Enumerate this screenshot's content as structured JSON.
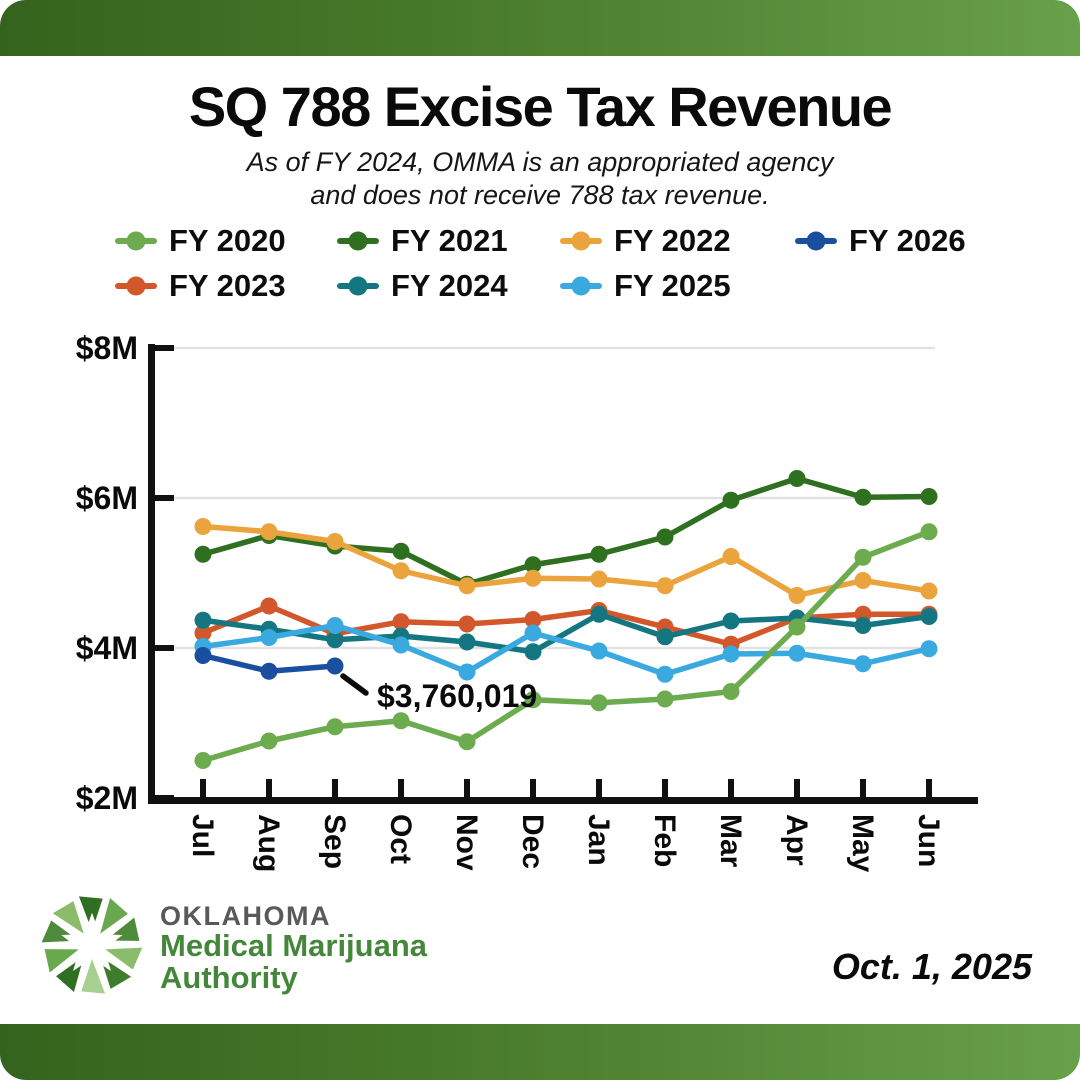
{
  "header": {
    "title": "SQ 788 Excise Tax Revenue",
    "subtitle_line1": "As of FY 2024, OMMA is an appropriated agency",
    "subtitle_line2": "and does not receive 788 tax revenue."
  },
  "chart_data": {
    "type": "line",
    "title": "SQ 788 Excise Tax Revenue",
    "unit": "USD millions",
    "x": [
      "Jul",
      "Aug",
      "Sep",
      "Oct",
      "Nov",
      "Dec",
      "Jan",
      "Feb",
      "Mar",
      "Apr",
      "May",
      "Jun"
    ],
    "y_tick_labels": [
      "$8M",
      "$6M",
      "$4M",
      "$2M"
    ],
    "y_tick_values": [
      8,
      6,
      4,
      2
    ],
    "ylim": [
      2,
      8
    ],
    "grid": "horizontal",
    "legend_position": "top",
    "legend_order": [
      "FY 2020",
      "FY 2021",
      "FY 2022",
      "FY 2026",
      "FY 2023",
      "FY 2024",
      "FY 2025"
    ],
    "series": [
      {
        "name": "FY 2020",
        "color": "#6cab4e",
        "values": [
          2.5,
          2.76,
          2.95,
          3.03,
          2.75,
          3.31,
          3.27,
          3.32,
          3.42,
          4.28,
          5.21,
          5.55
        ]
      },
      {
        "name": "FY 2021",
        "color": "#2e7020",
        "values": [
          5.25,
          5.5,
          5.36,
          5.29,
          4.85,
          5.11,
          5.25,
          5.48,
          5.97,
          6.26,
          6.01,
          6.02
        ]
      },
      {
        "name": "FY 2022",
        "color": "#eba33d",
        "values": [
          5.62,
          5.55,
          5.42,
          5.03,
          4.83,
          4.93,
          4.92,
          4.83,
          5.22,
          4.7,
          4.9,
          4.76
        ]
      },
      {
        "name": "FY 2023",
        "color": "#d2572b",
        "values": [
          4.2,
          4.56,
          4.19,
          4.35,
          4.32,
          4.38,
          4.5,
          4.28,
          4.05,
          4.4,
          4.45,
          4.45
        ]
      },
      {
        "name": "FY 2024",
        "color": "#147680",
        "values": [
          4.37,
          4.25,
          4.11,
          4.16,
          4.08,
          3.95,
          4.45,
          4.15,
          4.36,
          4.4,
          4.3,
          4.42
        ]
      },
      {
        "name": "FY 2025",
        "color": "#39a9e0",
        "values": [
          4.02,
          4.14,
          4.3,
          4.04,
          3.68,
          4.2,
          3.96,
          3.65,
          3.92,
          3.93,
          3.79,
          3.99
        ]
      },
      {
        "name": "FY 2026",
        "color": "#1a4fa0",
        "values": [
          3.9,
          3.69,
          3.76,
          null,
          null,
          null,
          null,
          null,
          null,
          null,
          null,
          null
        ]
      }
    ],
    "annotation": {
      "text": "$3,760,019",
      "series": "FY 2026",
      "x": "Sep",
      "value_usd": 3760019
    }
  },
  "footer": {
    "logo_line1": "OKLAHOMA",
    "logo_line2": "Medical Marijuana",
    "logo_line3": "Authority",
    "date": "Oct. 1, 2025"
  },
  "colors": {
    "banner_gradient_left": "#34631d",
    "banner_gradient_right": "#69a04b",
    "axis": "#111111",
    "gridline": "#e2e2e2",
    "logo_gray": "#58595b",
    "logo_green": "#44873b"
  }
}
